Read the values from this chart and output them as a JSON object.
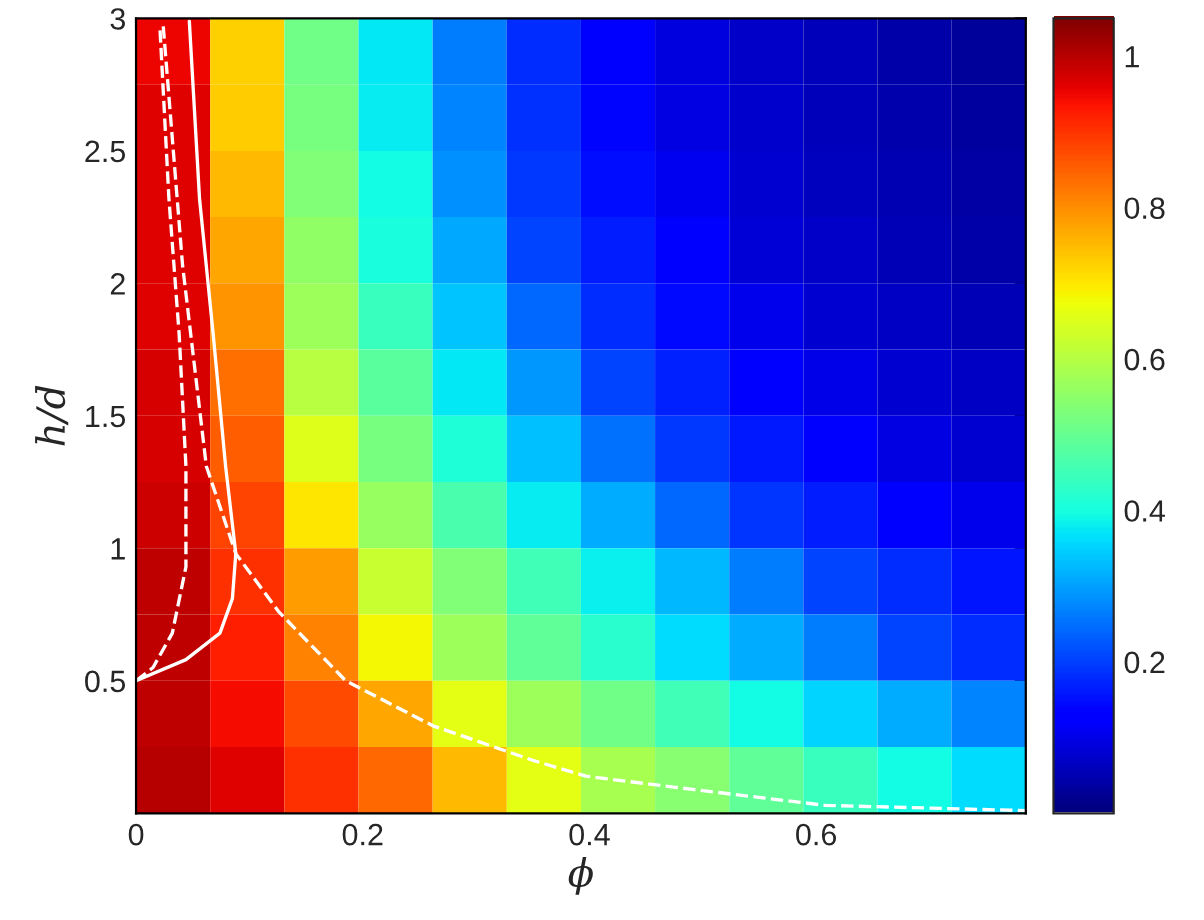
{
  "chart_data": {
    "type": "heatmap",
    "xlabel": "ϕ",
    "ylabel": "h/d",
    "xlim": [
      0,
      0.785
    ],
    "ylim": [
      0,
      3
    ],
    "xticks": [
      0,
      0.2,
      0.4,
      0.6
    ],
    "yticks": [
      0.5,
      1,
      1.5,
      2,
      2.5,
      3
    ],
    "clim": [
      0,
      1.05
    ],
    "cticks": [
      0.2,
      0.4,
      0.6,
      0.8,
      1
    ],
    "cells": [
      [
        0.95,
        0.725,
        0.51,
        0.37,
        0.26,
        0.18,
        0.13,
        0.087,
        0.068,
        0.055,
        0.041,
        0.027
      ],
      [
        0.96,
        0.73,
        0.52,
        0.375,
        0.27,
        0.184,
        0.139,
        0.094,
        0.071,
        0.057,
        0.043,
        0.03
      ],
      [
        0.96,
        0.75,
        0.53,
        0.39,
        0.28,
        0.19,
        0.147,
        0.103,
        0.074,
        0.061,
        0.048,
        0.035
      ],
      [
        0.96,
        0.77,
        0.55,
        0.4,
        0.305,
        0.205,
        0.16,
        0.119,
        0.079,
        0.066,
        0.053,
        0.041
      ],
      [
        0.96,
        0.79,
        0.57,
        0.44,
        0.335,
        0.24,
        0.18,
        0.14,
        0.1,
        0.075,
        0.063,
        0.051
      ],
      [
        0.97,
        0.83,
        0.6,
        0.48,
        0.37,
        0.29,
        0.205,
        0.167,
        0.13,
        0.096,
        0.074,
        0.064
      ],
      [
        0.97,
        0.85,
        0.65,
        0.52,
        0.41,
        0.33,
        0.25,
        0.19,
        0.156,
        0.124,
        0.091,
        0.074
      ],
      [
        0.98,
        0.88,
        0.7,
        0.56,
        0.46,
        0.375,
        0.31,
        0.24,
        0.187,
        0.16,
        0.13,
        0.1
      ],
      [
        0.99,
        0.9,
        0.78,
        0.62,
        0.53,
        0.45,
        0.38,
        0.32,
        0.26,
        0.205,
        0.18,
        0.153
      ],
      [
        0.99,
        0.92,
        0.81,
        0.68,
        0.57,
        0.49,
        0.42,
        0.36,
        0.31,
        0.26,
        0.205,
        0.18
      ],
      [
        0.99,
        0.94,
        0.87,
        0.77,
        0.66,
        0.57,
        0.51,
        0.45,
        0.39,
        0.35,
        0.31,
        0.27
      ],
      [
        1.0,
        0.96,
        0.9,
        0.84,
        0.75,
        0.66,
        0.58,
        0.54,
        0.49,
        0.44,
        0.39,
        0.36
      ]
    ],
    "series": [
      {
        "type": "line",
        "color": "#ffffff",
        "line_style": "solid",
        "x": [
          0,
          0.044,
          0.074,
          0.085,
          0.088,
          0.079,
          0.068,
          0.056,
          0.047
        ],
        "values": [
          0.5,
          0.58,
          0.68,
          0.81,
          0.98,
          1.31,
          1.81,
          2.32,
          2.99
        ]
      },
      {
        "type": "line",
        "color": "#ffffff",
        "line_style": "dashed",
        "x": [
          0,
          0.015,
          0.032,
          0.044,
          0.044,
          0.038,
          0.029,
          0.021
        ],
        "values": [
          0.5,
          0.55,
          0.68,
          0.93,
          1.31,
          1.81,
          2.32,
          2.97
        ]
      },
      {
        "type": "line",
        "color": "#ffffff",
        "line_style": "dashed",
        "x": [
          0.024,
          0.041,
          0.062,
          0.088,
          0.126,
          0.185,
          0.262,
          0.35,
          0.397,
          0.491,
          0.608,
          0.785
        ],
        "values": [
          2.97,
          2.07,
          1.31,
          0.98,
          0.76,
          0.5,
          0.33,
          0.2,
          0.14,
          0.09,
          0.03,
          0.01
        ]
      }
    ]
  }
}
